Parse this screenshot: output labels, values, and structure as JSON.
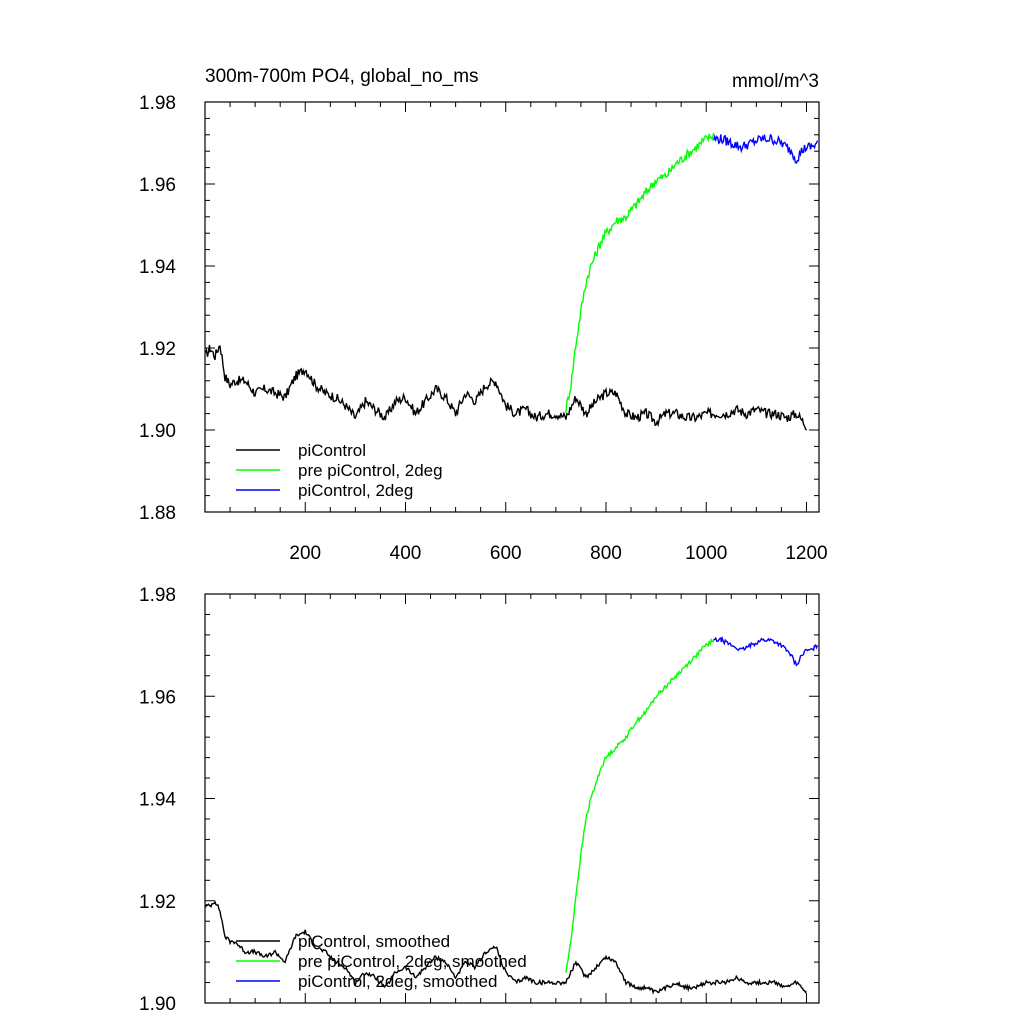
{
  "chart_data": [
    {
      "type": "line",
      "title": "300m-700m PO4, global_no_ms",
      "units": "mmol/m^3",
      "xlim": [
        0,
        1225
      ],
      "ylim": [
        1.88,
        1.98
      ],
      "xticks": [
        200,
        400,
        600,
        800,
        1000,
        1200
      ],
      "xtick_labels": [
        "200",
        "400",
        "600",
        "800",
        "1000",
        "1200"
      ],
      "yticks": [
        1.88,
        1.9,
        1.92,
        1.94,
        1.96,
        1.98
      ],
      "ytick_labels": [
        "1.88",
        "1.90",
        "1.92",
        "1.94",
        "1.96",
        "1.98"
      ],
      "legend_position": "bottom-left",
      "series": [
        {
          "name": "piControl",
          "color": "#000000",
          "x": [
            1,
            10,
            20,
            30,
            40,
            50,
            60,
            80,
            100,
            120,
            140,
            160,
            180,
            200,
            220,
            240,
            260,
            280,
            300,
            320,
            340,
            360,
            380,
            400,
            420,
            440,
            460,
            480,
            500,
            520,
            540,
            560,
            580,
            600,
            620,
            640,
            660,
            680,
            700,
            720,
            740,
            760,
            780,
            800,
            820,
            840,
            860,
            880,
            900,
            920,
            940,
            960,
            980,
            1000,
            1020,
            1040,
            1060,
            1080,
            1100,
            1120,
            1140,
            1160,
            1180,
            1200
          ],
          "y": [
            1.918,
            1.92,
            1.918,
            1.921,
            1.913,
            1.911,
            1.912,
            1.912,
            1.909,
            1.91,
            1.909,
            1.908,
            1.913,
            1.915,
            1.911,
            1.909,
            1.908,
            1.906,
            1.903,
            1.907,
            1.905,
            1.903,
            1.907,
            1.908,
            1.904,
            1.907,
            1.91,
            1.908,
            1.904,
            1.909,
            1.907,
            1.911,
            1.912,
            1.906,
            1.904,
            1.905,
            1.903,
            1.904,
            1.904,
            1.903,
            1.908,
            1.904,
            1.907,
            1.909,
            1.909,
            1.904,
            1.903,
            1.904,
            1.902,
            1.904,
            1.904,
            1.903,
            1.903,
            1.904,
            1.904,
            1.904,
            1.905,
            1.904,
            1.905,
            1.904,
            1.904,
            1.903,
            1.904,
            1.901
          ]
        },
        {
          "name": "pre piControl, 2deg",
          "color": "#00ff00",
          "x": [
            720,
            730,
            740,
            750,
            760,
            770,
            780,
            790,
            800,
            820,
            840,
            860,
            880,
            900,
            920,
            940,
            960,
            980,
            1000,
            1015
          ],
          "y": [
            1.905,
            1.911,
            1.921,
            1.929,
            1.936,
            1.94,
            1.943,
            1.946,
            1.948,
            1.951,
            1.952,
            1.955,
            1.958,
            1.961,
            1.962,
            1.965,
            1.967,
            1.969,
            1.971,
            1.972
          ]
        },
        {
          "name": "piControl, 2deg",
          "color": "#0000ff",
          "x": [
            1015,
            1030,
            1050,
            1070,
            1090,
            1110,
            1130,
            1150,
            1170,
            1180,
            1190,
            1200,
            1210,
            1222
          ],
          "y": [
            1.971,
            1.971,
            1.97,
            1.969,
            1.97,
            1.971,
            1.971,
            1.97,
            1.968,
            1.966,
            1.968,
            1.969,
            1.969,
            1.97
          ]
        }
      ]
    },
    {
      "type": "line",
      "xlim": [
        0,
        1225
      ],
      "ylim": [
        1.9,
        1.98
      ],
      "xticks": [
        200,
        400,
        600,
        800,
        1000,
        1200
      ],
      "yticks": [
        1.9,
        1.92,
        1.94,
        1.96,
        1.98
      ],
      "ytick_labels": [
        "1.90",
        "1.92",
        "1.94",
        "1.96",
        "1.98"
      ],
      "legend_position": "bottom-left",
      "series": [
        {
          "name": "piControl, smoothed",
          "color": "#000000",
          "x": [
            1,
            10,
            20,
            30,
            40,
            50,
            60,
            80,
            100,
            120,
            140,
            160,
            180,
            200,
            220,
            240,
            260,
            280,
            300,
            320,
            340,
            360,
            380,
            400,
            420,
            440,
            460,
            480,
            500,
            520,
            540,
            560,
            580,
            600,
            620,
            640,
            660,
            680,
            700,
            720,
            740,
            760,
            780,
            800,
            820,
            840,
            860,
            880,
            900,
            920,
            940,
            960,
            980,
            1000,
            1020,
            1040,
            1060,
            1080,
            1100,
            1120,
            1140,
            1160,
            1180,
            1200
          ],
          "y": [
            1.919,
            1.919,
            1.92,
            1.918,
            1.913,
            1.912,
            1.912,
            1.91,
            1.91,
            1.909,
            1.91,
            1.908,
            1.913,
            1.914,
            1.911,
            1.91,
            1.908,
            1.907,
            1.904,
            1.906,
            1.905,
            1.903,
            1.906,
            1.907,
            1.905,
            1.907,
            1.909,
            1.908,
            1.905,
            1.908,
            1.907,
            1.91,
            1.911,
            1.906,
            1.904,
            1.905,
            1.904,
            1.904,
            1.904,
            1.904,
            1.908,
            1.905,
            1.907,
            1.909,
            1.908,
            1.904,
            1.903,
            1.903,
            1.902,
            1.903,
            1.904,
            1.903,
            1.903,
            1.904,
            1.904,
            1.904,
            1.905,
            1.904,
            1.904,
            1.904,
            1.904,
            1.903,
            1.904,
            1.902
          ]
        },
        {
          "name": "pre piControl, 2deg, smoothed",
          "color": "#00ff00",
          "x": [
            720,
            730,
            740,
            750,
            760,
            770,
            780,
            790,
            800,
            820,
            840,
            860,
            880,
            900,
            920,
            940,
            960,
            980,
            1000,
            1015
          ],
          "y": [
            1.906,
            1.912,
            1.921,
            1.929,
            1.936,
            1.94,
            1.943,
            1.946,
            1.948,
            1.95,
            1.952,
            1.955,
            1.957,
            1.96,
            1.962,
            1.964,
            1.966,
            1.968,
            1.97,
            1.971
          ]
        },
        {
          "name": "piControl, 2deg, smoothed",
          "color": "#0000ff",
          "x": [
            1015,
            1030,
            1050,
            1070,
            1090,
            1110,
            1130,
            1150,
            1170,
            1180,
            1190,
            1200,
            1210,
            1222
          ],
          "y": [
            1.971,
            1.971,
            1.97,
            1.969,
            1.97,
            1.971,
            1.971,
            1.97,
            1.968,
            1.966,
            1.968,
            1.969,
            1.969,
            1.97
          ]
        }
      ]
    }
  ]
}
